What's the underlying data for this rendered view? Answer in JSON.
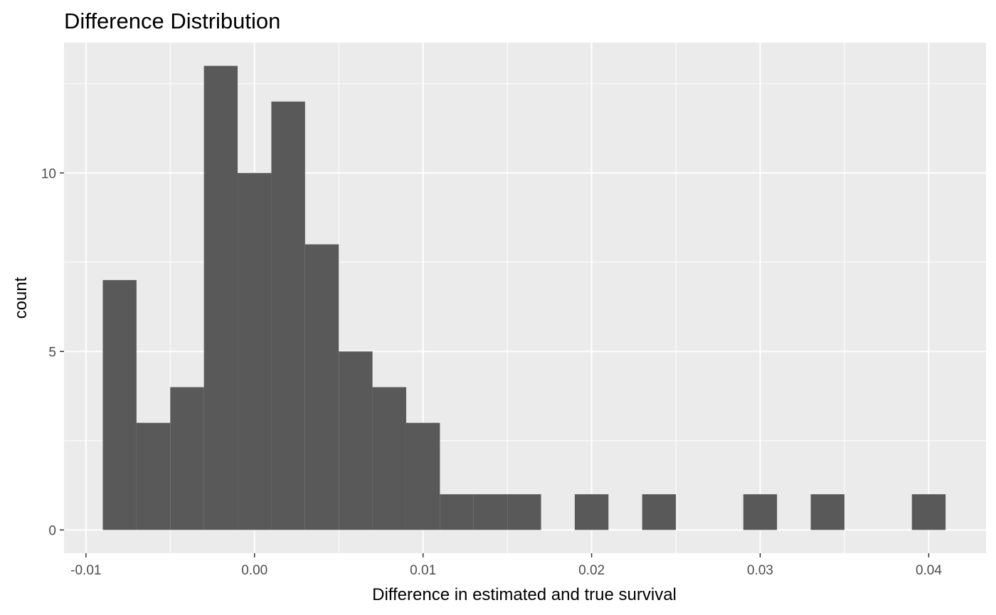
{
  "chart_data": {
    "type": "bar",
    "title": "Difference Distribution",
    "xlabel": "Difference in estimated and true survival",
    "ylabel": "count",
    "bin_width": 0.002,
    "bins": [
      {
        "x_start": -0.009,
        "x_end": -0.007,
        "count": 7
      },
      {
        "x_start": -0.007,
        "x_end": -0.005,
        "count": 3
      },
      {
        "x_start": -0.005,
        "x_end": -0.003,
        "count": 4
      },
      {
        "x_start": -0.003,
        "x_end": -0.001,
        "count": 13
      },
      {
        "x_start": -0.001,
        "x_end": 0.001,
        "count": 10
      },
      {
        "x_start": 0.001,
        "x_end": 0.003,
        "count": 12
      },
      {
        "x_start": 0.003,
        "x_end": 0.005,
        "count": 8
      },
      {
        "x_start": 0.005,
        "x_end": 0.007,
        "count": 5
      },
      {
        "x_start": 0.007,
        "x_end": 0.009,
        "count": 4
      },
      {
        "x_start": 0.009,
        "x_end": 0.011,
        "count": 3
      },
      {
        "x_start": 0.011,
        "x_end": 0.013,
        "count": 1
      },
      {
        "x_start": 0.013,
        "x_end": 0.015,
        "count": 1
      },
      {
        "x_start": 0.015,
        "x_end": 0.017,
        "count": 1
      },
      {
        "x_start": 0.017,
        "x_end": 0.019,
        "count": 0
      },
      {
        "x_start": 0.019,
        "x_end": 0.021,
        "count": 1
      },
      {
        "x_start": 0.021,
        "x_end": 0.023,
        "count": 0
      },
      {
        "x_start": 0.023,
        "x_end": 0.025,
        "count": 1
      },
      {
        "x_start": 0.025,
        "x_end": 0.027,
        "count": 0
      },
      {
        "x_start": 0.027,
        "x_end": 0.029,
        "count": 0
      },
      {
        "x_start": 0.029,
        "x_end": 0.031,
        "count": 1
      },
      {
        "x_start": 0.031,
        "x_end": 0.033,
        "count": 0
      },
      {
        "x_start": 0.033,
        "x_end": 0.035,
        "count": 1
      },
      {
        "x_start": 0.035,
        "x_end": 0.037,
        "count": 0
      },
      {
        "x_start": 0.037,
        "x_end": 0.039,
        "count": 0
      },
      {
        "x_start": 0.039,
        "x_end": 0.041,
        "count": 1
      }
    ],
    "xlim": [
      -0.0113,
      0.0434
    ],
    "ylim": [
      -0.65,
      13.65
    ],
    "x_ticks": [
      {
        "value": -0.01,
        "label": "-0.01"
      },
      {
        "value": 0.0,
        "label": "0.00"
      },
      {
        "value": 0.01,
        "label": "0.01"
      },
      {
        "value": 0.02,
        "label": "0.02"
      },
      {
        "value": 0.03,
        "label": "0.03"
      },
      {
        "value": 0.04,
        "label": "0.04"
      }
    ],
    "x_minor_ticks": [
      -0.005,
      0.005,
      0.015,
      0.025,
      0.035
    ],
    "y_ticks": [
      {
        "value": 0,
        "label": "0"
      },
      {
        "value": 5,
        "label": "5"
      },
      {
        "value": 10,
        "label": "10"
      }
    ],
    "y_minor_ticks": [
      2.5,
      7.5,
      12.5
    ],
    "grid": true,
    "legend": "none",
    "colors": {
      "bar_fill": "#595959",
      "panel_background": "#ebebeb",
      "grid_line": "#ffffff",
      "tick_text": "#4d4d4d",
      "tick_mark": "#333333"
    }
  }
}
